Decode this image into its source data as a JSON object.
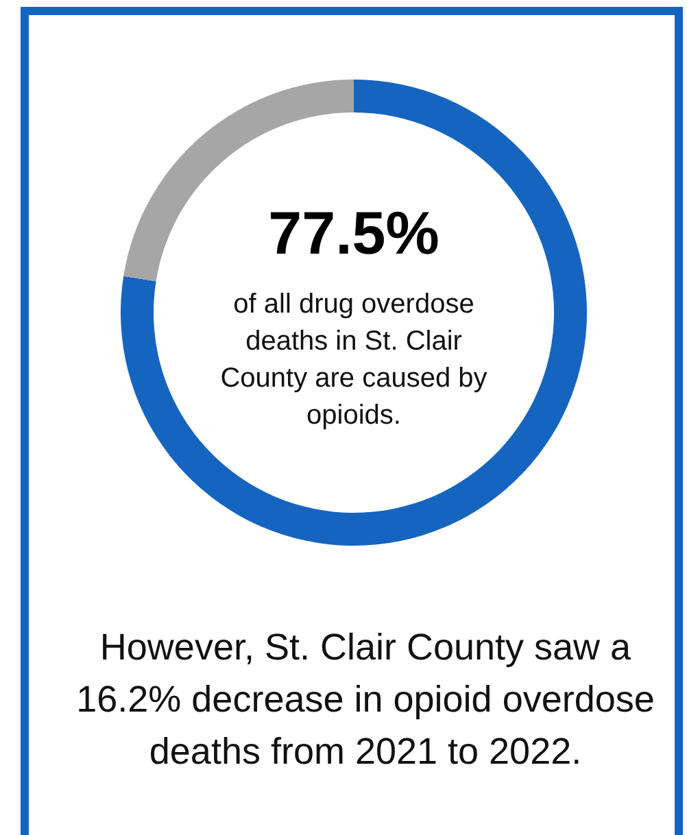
{
  "chart_data": {
    "type": "donut",
    "categories": [
      null,
      null
    ],
    "values": [
      77.5,
      22.5
    ],
    "colors": [
      "#1565c0",
      "#a6a6a6"
    ],
    "value_labels": [
      "77.5%",
      null
    ],
    "annotations": [
      "of all drug overdose\ndeaths in St. Clair\nCounty are caused by\nopioids.",
      "However, St. Clair County saw a\n16.2% decrease in opioid overdose\ndeaths from 2021 to 2022."
    ]
  }
}
